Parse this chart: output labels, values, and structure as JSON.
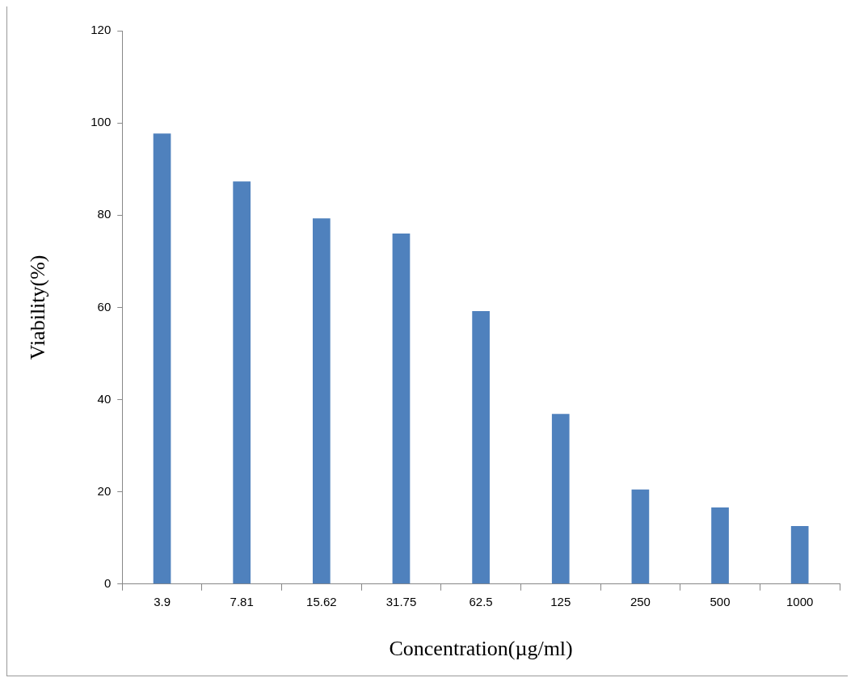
{
  "chart_data": {
    "type": "bar",
    "xlabel": "Concentration(µg/ml)",
    "ylabel": "Viability(%)",
    "categories": [
      "3.9",
      "7.81",
      "15.62",
      "31.75",
      "62.5",
      "125",
      "250",
      "500",
      "1000"
    ],
    "values": [
      97.7,
      87.3,
      79.3,
      76.0,
      59.2,
      36.9,
      20.5,
      16.6,
      12.6
    ],
    "color": "#4f81bd",
    "ylim": [
      0,
      120
    ],
    "yticks": [
      0,
      20,
      40,
      60,
      80,
      100,
      120
    ],
    "grid": false,
    "legend": false
  }
}
